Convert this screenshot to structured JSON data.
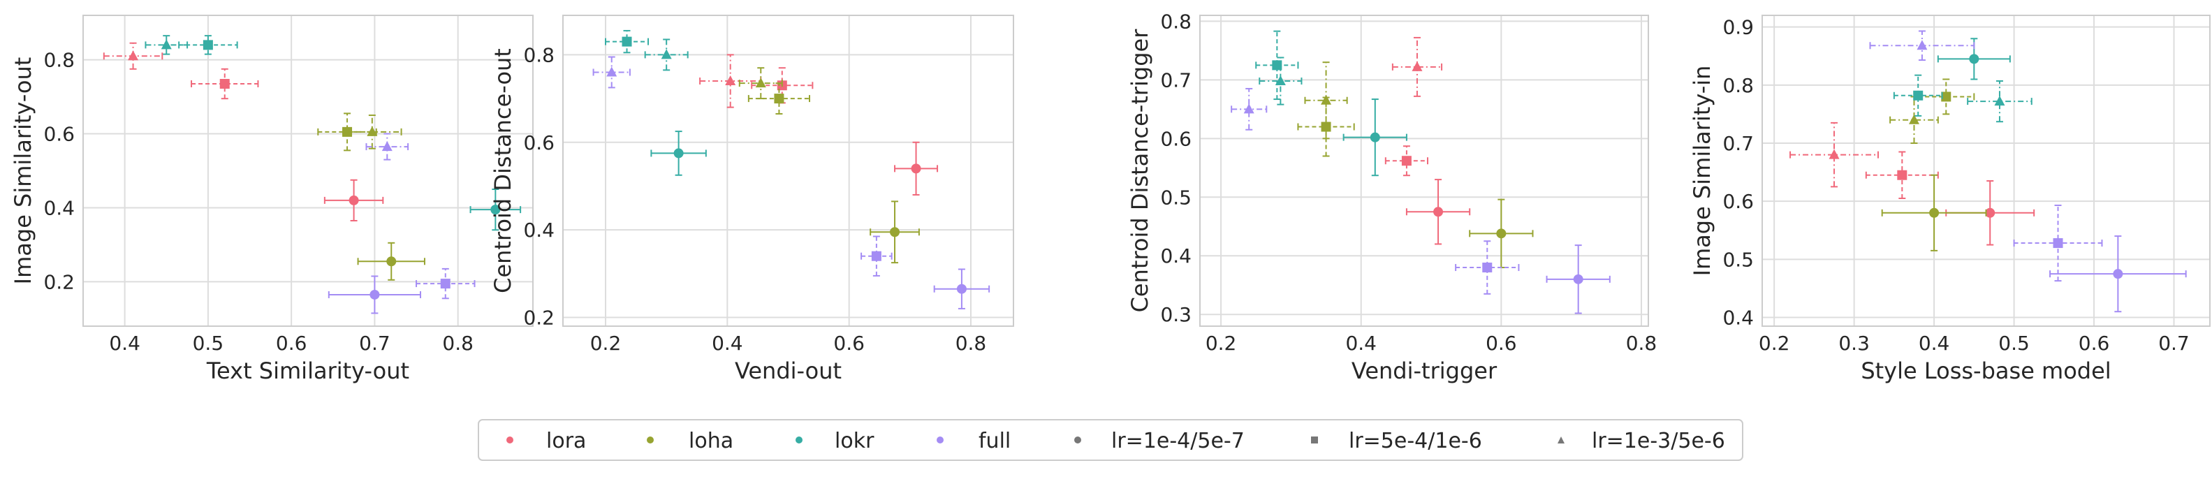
{
  "legend": {
    "placement": "bottom-center",
    "method_entries": [
      {
        "label": "lora",
        "color": "#f0687a"
      },
      {
        "label": "loha",
        "color": "#97a431"
      },
      {
        "label": "lokr",
        "color": "#36ada4"
      },
      {
        "label": "full",
        "color": "#a48cf4"
      }
    ],
    "lr_entries": [
      {
        "label": "lr=1e-4/5e-7",
        "marker": "circle",
        "color": "#777777"
      },
      {
        "label": "lr=5e-4/1e-6",
        "marker": "square",
        "color": "#777777"
      },
      {
        "label": "lr=1e-3/5e-6",
        "marker": "triangle",
        "color": "#777777"
      }
    ]
  },
  "chart_data": [
    {
      "type": "scatter",
      "xlabel": "Text Similarity-out",
      "ylabel": "Image Similarity-out",
      "xlim": [
        0.35,
        0.89
      ],
      "ylim": [
        0.08,
        0.92
      ],
      "xticks": [
        "0.4",
        "0.5",
        "0.6",
        "0.7",
        "0.8"
      ],
      "xtick_values": [
        0.4,
        0.5,
        0.6,
        0.7,
        0.8
      ],
      "yticks": [
        "0.2",
        "0.4",
        "0.6",
        "0.8"
      ],
      "ytick_values": [
        0.2,
        0.4,
        0.6,
        0.8
      ],
      "grid": true,
      "points": [
        {
          "method": "lora",
          "lr": "lr=1e-4/5e-7",
          "x": 0.675,
          "y": 0.42,
          "xerr": 0.035,
          "yerr": 0.055
        },
        {
          "method": "lora",
          "lr": "lr=5e-4/1e-6",
          "x": 0.52,
          "y": 0.735,
          "xerr": 0.04,
          "yerr": 0.04
        },
        {
          "method": "lora",
          "lr": "lr=1e-3/5e-6",
          "x": 0.41,
          "y": 0.81,
          "xerr": 0.035,
          "yerr": 0.035
        },
        {
          "method": "loha",
          "lr": "lr=1e-4/5e-7",
          "x": 0.72,
          "y": 0.255,
          "xerr": 0.04,
          "yerr": 0.05
        },
        {
          "method": "loha",
          "lr": "lr=5e-4/1e-6",
          "x": 0.667,
          "y": 0.605,
          "xerr": 0.035,
          "yerr": 0.05
        },
        {
          "method": "loha",
          "lr": "lr=1e-3/5e-6",
          "x": 0.697,
          "y": 0.605,
          "xerr": 0.035,
          "yerr": 0.045
        },
        {
          "method": "lokr",
          "lr": "lr=1e-4/5e-7",
          "x": 0.845,
          "y": 0.395,
          "xerr": 0.03,
          "yerr": 0.055
        },
        {
          "method": "lokr",
          "lr": "lr=5e-4/1e-6",
          "x": 0.5,
          "y": 0.84,
          "xerr": 0.035,
          "yerr": 0.025
        },
        {
          "method": "lokr",
          "lr": "lr=1e-3/5e-6",
          "x": 0.45,
          "y": 0.84,
          "xerr": 0.025,
          "yerr": 0.025
        },
        {
          "method": "full",
          "lr": "lr=1e-4/5e-7",
          "x": 0.7,
          "y": 0.165,
          "xerr": 0.055,
          "yerr": 0.05
        },
        {
          "method": "full",
          "lr": "lr=5e-4/1e-6",
          "x": 0.785,
          "y": 0.195,
          "xerr": 0.035,
          "yerr": 0.04
        },
        {
          "method": "full",
          "lr": "lr=1e-3/5e-6",
          "x": 0.715,
          "y": 0.565,
          "xerr": 0.025,
          "yerr": 0.035
        }
      ]
    },
    {
      "type": "scatter",
      "xlabel": "Vendi-out",
      "ylabel": "Centroid Distance-out",
      "xlim": [
        0.13,
        0.87
      ],
      "ylim": [
        0.18,
        0.89
      ],
      "xticks": [
        "0.2",
        "0.4",
        "0.6",
        "0.8"
      ],
      "xtick_values": [
        0.2,
        0.4,
        0.6,
        0.8
      ],
      "yticks": [
        "0.2",
        "0.4",
        "0.6",
        "0.8"
      ],
      "ytick_values": [
        0.2,
        0.4,
        0.6,
        0.8
      ],
      "grid": true,
      "points": [
        {
          "method": "lora",
          "lr": "lr=1e-4/5e-7",
          "x": 0.71,
          "y": 0.54,
          "xerr": 0.035,
          "yerr": 0.06
        },
        {
          "method": "lora",
          "lr": "lr=5e-4/1e-6",
          "x": 0.49,
          "y": 0.73,
          "xerr": 0.05,
          "yerr": 0.04
        },
        {
          "method": "lora",
          "lr": "lr=1e-3/5e-6",
          "x": 0.405,
          "y": 0.74,
          "xerr": 0.05,
          "yerr": 0.06
        },
        {
          "method": "loha",
          "lr": "lr=1e-4/5e-7",
          "x": 0.675,
          "y": 0.395,
          "xerr": 0.04,
          "yerr": 0.07
        },
        {
          "method": "loha",
          "lr": "lr=5e-4/1e-6",
          "x": 0.485,
          "y": 0.7,
          "xerr": 0.05,
          "yerr": 0.035
        },
        {
          "method": "loha",
          "lr": "lr=1e-3/5e-6",
          "x": 0.455,
          "y": 0.735,
          "xerr": 0.035,
          "yerr": 0.035
        },
        {
          "method": "lokr",
          "lr": "lr=1e-4/5e-7",
          "x": 0.32,
          "y": 0.575,
          "xerr": 0.045,
          "yerr": 0.05
        },
        {
          "method": "lokr",
          "lr": "lr=5e-4/1e-6",
          "x": 0.235,
          "y": 0.83,
          "xerr": 0.035,
          "yerr": 0.025
        },
        {
          "method": "lokr",
          "lr": "lr=1e-3/5e-6",
          "x": 0.3,
          "y": 0.8,
          "xerr": 0.035,
          "yerr": 0.035
        },
        {
          "method": "full",
          "lr": "lr=1e-4/5e-7",
          "x": 0.785,
          "y": 0.265,
          "xerr": 0.045,
          "yerr": 0.045
        },
        {
          "method": "full",
          "lr": "lr=5e-4/1e-6",
          "x": 0.645,
          "y": 0.34,
          "xerr": 0.025,
          "yerr": 0.045
        },
        {
          "method": "full",
          "lr": "lr=1e-3/5e-6",
          "x": 0.21,
          "y": 0.76,
          "xerr": 0.03,
          "yerr": 0.035
        }
      ]
    },
    {
      "type": "scatter",
      "xlabel": "Vendi-trigger",
      "ylabel": "Centroid Distance-trigger",
      "xlim": [
        0.17,
        0.81
      ],
      "ylim": [
        0.28,
        0.81
      ],
      "xticks": [
        "0.2",
        "0.4",
        "0.6",
        "0.8"
      ],
      "xtick_values": [
        0.2,
        0.4,
        0.6,
        0.8
      ],
      "yticks": [
        "0.3",
        "0.4",
        "0.5",
        "0.6",
        "0.7",
        "0.8"
      ],
      "ytick_values": [
        0.3,
        0.4,
        0.5,
        0.6,
        0.7,
        0.8
      ],
      "grid": true,
      "points": [
        {
          "method": "lora",
          "lr": "lr=1e-4/5e-7",
          "x": 0.51,
          "y": 0.475,
          "xerr": 0.045,
          "yerr": 0.055
        },
        {
          "method": "lora",
          "lr": "lr=5e-4/1e-6",
          "x": 0.465,
          "y": 0.562,
          "xerr": 0.03,
          "yerr": 0.025
        },
        {
          "method": "lora",
          "lr": "lr=1e-3/5e-6",
          "x": 0.48,
          "y": 0.722,
          "xerr": 0.035,
          "yerr": 0.05
        },
        {
          "method": "loha",
          "lr": "lr=1e-4/5e-7",
          "x": 0.6,
          "y": 0.438,
          "xerr": 0.045,
          "yerr": 0.058
        },
        {
          "method": "loha",
          "lr": "lr=5e-4/1e-6",
          "x": 0.35,
          "y": 0.62,
          "xerr": 0.04,
          "yerr": 0.05
        },
        {
          "method": "loha",
          "lr": "lr=1e-3/5e-6",
          "x": 0.35,
          "y": 0.665,
          "xerr": 0.03,
          "yerr": 0.065
        },
        {
          "method": "lokr",
          "lr": "lr=1e-4/5e-7",
          "x": 0.42,
          "y": 0.602,
          "xerr": 0.045,
          "yerr": 0.065
        },
        {
          "method": "lokr",
          "lr": "lr=5e-4/1e-6",
          "x": 0.28,
          "y": 0.725,
          "xerr": 0.03,
          "yerr": 0.058
        },
        {
          "method": "lokr",
          "lr": "lr=1e-3/5e-6",
          "x": 0.285,
          "y": 0.698,
          "xerr": 0.03,
          "yerr": 0.04
        },
        {
          "method": "full",
          "lr": "lr=1e-4/5e-7",
          "x": 0.71,
          "y": 0.36,
          "xerr": 0.045,
          "yerr": 0.058
        },
        {
          "method": "full",
          "lr": "lr=5e-4/1e-6",
          "x": 0.58,
          "y": 0.38,
          "xerr": 0.045,
          "yerr": 0.045
        },
        {
          "method": "full",
          "lr": "lr=1e-3/5e-6",
          "x": 0.24,
          "y": 0.65,
          "xerr": 0.025,
          "yerr": 0.035
        }
      ]
    },
    {
      "type": "scatter",
      "xlabel": "Style Loss-base model",
      "ylabel": "Image Similarity-in",
      "xlim": [
        0.185,
        0.745
      ],
      "ylim": [
        0.385,
        0.92
      ],
      "xticks": [
        "0.2",
        "0.3",
        "0.4",
        "0.5",
        "0.6",
        "0.7"
      ],
      "xtick_values": [
        0.2,
        0.3,
        0.4,
        0.5,
        0.6,
        0.7
      ],
      "yticks": [
        "0.4",
        "0.5",
        "0.6",
        "0.7",
        "0.8",
        "0.9"
      ],
      "ytick_values": [
        0.4,
        0.5,
        0.6,
        0.7,
        0.8,
        0.9
      ],
      "grid": true,
      "points": [
        {
          "method": "lora",
          "lr": "lr=1e-4/5e-7",
          "x": 0.47,
          "y": 0.58,
          "xerr": 0.055,
          "yerr": 0.055
        },
        {
          "method": "lora",
          "lr": "lr=5e-4/1e-6",
          "x": 0.36,
          "y": 0.645,
          "xerr": 0.045,
          "yerr": 0.04
        },
        {
          "method": "lora",
          "lr": "lr=1e-3/5e-6",
          "x": 0.275,
          "y": 0.68,
          "xerr": 0.055,
          "yerr": 0.055
        },
        {
          "method": "loha",
          "lr": "lr=1e-4/5e-7",
          "x": 0.4,
          "y": 0.58,
          "xerr": 0.065,
          "yerr": 0.065
        },
        {
          "method": "loha",
          "lr": "lr=5e-4/1e-6",
          "x": 0.415,
          "y": 0.78,
          "xerr": 0.035,
          "yerr": 0.03
        },
        {
          "method": "loha",
          "lr": "lr=1e-3/5e-6",
          "x": 0.375,
          "y": 0.74,
          "xerr": 0.03,
          "yerr": 0.04
        },
        {
          "method": "lokr",
          "lr": "lr=1e-4/5e-7",
          "x": 0.45,
          "y": 0.845,
          "xerr": 0.045,
          "yerr": 0.035
        },
        {
          "method": "lokr",
          "lr": "lr=5e-4/1e-6",
          "x": 0.38,
          "y": 0.782,
          "xerr": 0.03,
          "yerr": 0.035
        },
        {
          "method": "lokr",
          "lr": "lr=1e-3/5e-6",
          "x": 0.482,
          "y": 0.772,
          "xerr": 0.04,
          "yerr": 0.035
        },
        {
          "method": "full",
          "lr": "lr=1e-4/5e-7",
          "x": 0.63,
          "y": 0.475,
          "xerr": 0.085,
          "yerr": 0.065
        },
        {
          "method": "full",
          "lr": "lr=5e-4/1e-6",
          "x": 0.555,
          "y": 0.528,
          "xerr": 0.055,
          "yerr": 0.065
        },
        {
          "method": "full",
          "lr": "lr=1e-3/5e-6",
          "x": 0.385,
          "y": 0.868,
          "xerr": 0.065,
          "yerr": 0.025
        }
      ]
    }
  ]
}
